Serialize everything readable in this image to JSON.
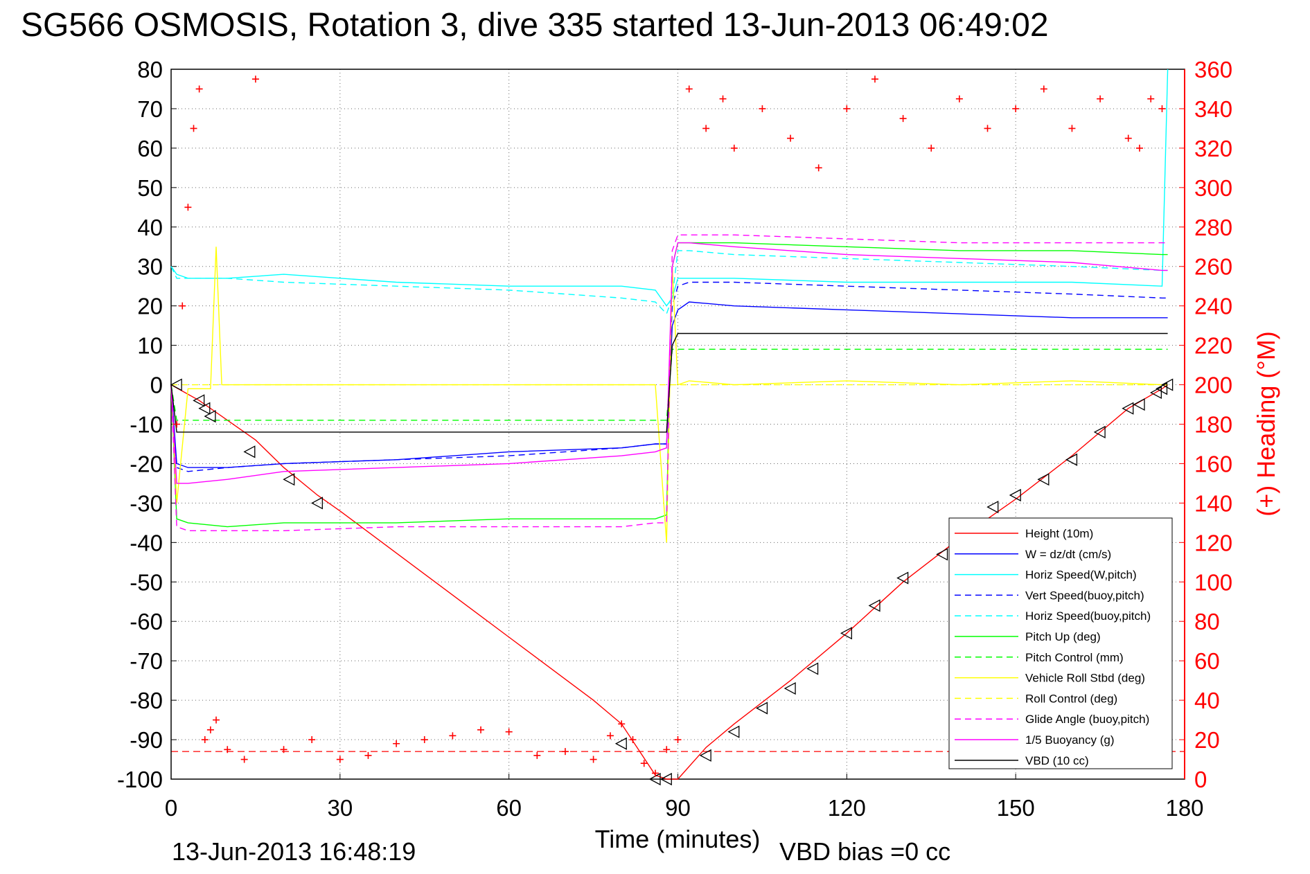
{
  "chart_data": {
    "type": "line",
    "title": "SG566 OSMOSIS, Rotation 3, dive 335 started 13-Jun-2013 06:49:02",
    "xlabel": "Time (minutes)",
    "ylabel_right": "(+) Heading (°M)",
    "xlim": [
      0,
      180
    ],
    "ylim": [
      -100,
      80
    ],
    "ylim_right": [
      0,
      360
    ],
    "x_ticks": [
      "0",
      "30",
      "60",
      "90",
      "120",
      "150",
      "180"
    ],
    "y_ticks": [
      "80",
      "70",
      "60",
      "50",
      "40",
      "30",
      "20",
      "10",
      "0",
      "-10",
      "-20",
      "-30",
      "-40",
      "-50",
      "-60",
      "-70",
      "-80",
      "-90",
      "-100"
    ],
    "y_ticks_right": [
      "360",
      "340",
      "320",
      "300",
      "280",
      "260",
      "240",
      "220",
      "200",
      "180",
      "160",
      "140",
      "120",
      "100",
      "80",
      "60",
      "40",
      "20",
      "0"
    ],
    "grid": true,
    "legend_position": "bottom-right",
    "footer_left": "13-Jun-2013 16:48:19",
    "footer_right": "VBD bias =0 cc",
    "series": [
      {
        "name": "Height (10m)",
        "color": "#ff0000",
        "style": "solid",
        "x": [
          0,
          5,
          10,
          15,
          20,
          26,
          30,
          45,
          60,
          75,
          80,
          86,
          88,
          90,
          95,
          100,
          110,
          120,
          130,
          140,
          150,
          160,
          170,
          176,
          177
        ],
        "y": [
          0,
          -4,
          -9,
          -14,
          -21,
          -28,
          -32,
          -48,
          -64,
          -80,
          -86,
          -99,
          -100,
          -100,
          -92,
          -86,
          -75,
          -63,
          -50,
          -39,
          -29,
          -18,
          -6,
          -1,
          0
        ]
      },
      {
        "name": "W = dz/dt (cm/s)",
        "color": "#0000ff",
        "style": "solid",
        "x": [
          0,
          1,
          3,
          10,
          20,
          40,
          60,
          80,
          86,
          88,
          89,
          90,
          92,
          100,
          120,
          140,
          160,
          176,
          177
        ],
        "y": [
          0,
          -20,
          -21,
          -21,
          -20,
          -19,
          -17,
          -16,
          -15,
          -15,
          15,
          19,
          21,
          20,
          19,
          18,
          17,
          17,
          17
        ]
      },
      {
        "name": "Horiz Speed(W,pitch)",
        "color": "#00ffff",
        "style": "solid",
        "x": [
          0,
          1,
          3,
          10,
          20,
          40,
          60,
          80,
          86,
          88,
          89,
          90,
          92,
          100,
          120,
          140,
          160,
          176,
          177
        ],
        "y": [
          30,
          28,
          27,
          27,
          28,
          26,
          25,
          25,
          24,
          20,
          22,
          27,
          27,
          27,
          26,
          26,
          26,
          25,
          80
        ]
      },
      {
        "name": "Vert Speed(buoy,pitch)",
        "color": "#0000ff",
        "style": "dashed",
        "x": [
          0,
          1,
          3,
          10,
          20,
          40,
          60,
          80,
          86,
          88,
          89,
          90,
          92,
          100,
          120,
          140,
          160,
          176,
          177
        ],
        "y": [
          0,
          -21,
          -22,
          -21,
          -20,
          -19,
          -18,
          -16,
          -15,
          -15,
          20,
          25,
          26,
          26,
          25,
          24,
          23,
          22,
          22
        ]
      },
      {
        "name": "Horiz Speed(buoy,pitch)",
        "color": "#00ffff",
        "style": "dashed",
        "x": [
          0,
          1,
          3,
          10,
          20,
          40,
          60,
          80,
          86,
          88,
          89,
          90,
          92,
          100,
          120,
          140,
          160,
          176,
          177
        ],
        "y": [
          30,
          27,
          27,
          27,
          26,
          25,
          24,
          22,
          21,
          18,
          22,
          34,
          34,
          33,
          32,
          31,
          30,
          29,
          29
        ]
      },
      {
        "name": "Pitch Up (deg)",
        "color": "#00ff00",
        "style": "solid",
        "x": [
          0,
          1,
          3,
          10,
          20,
          40,
          60,
          80,
          86,
          88,
          89,
          90,
          92,
          100,
          120,
          140,
          160,
          176,
          177
        ],
        "y": [
          0,
          -34,
          -35,
          -36,
          -35,
          -35,
          -34,
          -34,
          -34,
          -33,
          30,
          36,
          36,
          36,
          35,
          34,
          34,
          33,
          33
        ]
      },
      {
        "name": "Pitch Control (mm)",
        "color": "#00ff00",
        "style": "dashed",
        "x": [
          0,
          1,
          3,
          10,
          20,
          40,
          60,
          80,
          86,
          88,
          89,
          90,
          92,
          100,
          120,
          140,
          160,
          176,
          177
        ],
        "y": [
          0,
          -9,
          -9,
          -9,
          -9,
          -9,
          -9,
          -9,
          -9,
          -9,
          9,
          9,
          9,
          9,
          9,
          9,
          9,
          9,
          9
        ]
      },
      {
        "name": "Vehicle Roll Stbd (deg)",
        "color": "#ffff00",
        "style": "solid",
        "x": [
          0,
          1,
          3,
          7,
          8,
          9,
          20,
          40,
          60,
          80,
          86,
          88,
          89,
          90,
          92,
          100,
          120,
          140,
          160,
          176,
          177
        ],
        "y": [
          0,
          -30,
          -1,
          -1,
          35,
          0,
          0,
          0,
          0,
          0,
          0,
          -40,
          30,
          0,
          1,
          0,
          1,
          0,
          1,
          0,
          0
        ]
      },
      {
        "name": "Roll Control (deg)",
        "color": "#ffff00",
        "style": "dashed",
        "x": [
          0,
          1,
          3,
          10,
          20,
          40,
          60,
          80,
          86,
          88,
          89,
          90,
          92,
          100,
          120,
          140,
          160,
          176,
          177
        ],
        "y": [
          0,
          0,
          0,
          0,
          0,
          0,
          0,
          0,
          0,
          0,
          0,
          0,
          0,
          0,
          0,
          0,
          0,
          0,
          0
        ]
      },
      {
        "name": "Glide Angle (buoy,pitch)",
        "color": "#ff00ff",
        "style": "dashed",
        "x": [
          0,
          1,
          3,
          10,
          20,
          40,
          60,
          80,
          86,
          88,
          89,
          90,
          92,
          100,
          120,
          140,
          160,
          176,
          177
        ],
        "y": [
          0,
          -36,
          -37,
          -37,
          -37,
          -36,
          -36,
          -36,
          -35,
          -35,
          34,
          38,
          38,
          38,
          37,
          36,
          36,
          36,
          36
        ]
      },
      {
        "name": "1/5 Buoyancy (g)",
        "color": "#ff00ff",
        "style": "solid",
        "x": [
          0,
          1,
          3,
          10,
          20,
          40,
          60,
          80,
          86,
          88,
          89,
          90,
          92,
          100,
          120,
          140,
          160,
          176,
          177
        ],
        "y": [
          0,
          -25,
          -25,
          -24,
          -22,
          -21,
          -20,
          -18,
          -17,
          -16,
          30,
          36,
          36,
          35,
          33,
          32,
          31,
          29,
          29
        ]
      },
      {
        "name": "VBD (10 cc)",
        "color": "#000000",
        "style": "solid",
        "x": [
          0,
          1,
          3,
          10,
          20,
          40,
          60,
          80,
          86,
          88,
          89,
          90,
          92,
          100,
          120,
          140,
          160,
          176,
          177
        ],
        "y": [
          0,
          -12,
          -12,
          -12,
          -12,
          -12,
          -12,
          -12,
          -12,
          -12,
          10,
          13,
          13,
          13,
          13,
          13,
          13,
          13,
          13
        ]
      }
    ],
    "markers": {
      "height_triangles_x": [
        1,
        5,
        6,
        7,
        14,
        21,
        26,
        80,
        86,
        88,
        95,
        100,
        105,
        110,
        114,
        120,
        125,
        130,
        137,
        146,
        150,
        155,
        160,
        165,
        170,
        172,
        175,
        176,
        177
      ],
      "height_triangles_y": [
        0,
        -4,
        -6,
        -8,
        -17,
        -24,
        -30,
        -91,
        -100,
        -100,
        -94,
        -88,
        -82,
        -77,
        -72,
        -63,
        -56,
        -49,
        -43,
        -31,
        -28,
        -24,
        -19,
        -12,
        -6,
        -5,
        -2,
        -1,
        0
      ]
    },
    "heading_series": {
      "name": "(+) Heading (°M)",
      "color": "#ff0000",
      "marker": "+",
      "reference_line_value": 14,
      "x": [
        1,
        2,
        3,
        4,
        5,
        6,
        7,
        8,
        10,
        13,
        15,
        20,
        25,
        30,
        35,
        40,
        45,
        50,
        55,
        60,
        65,
        70,
        75,
        78,
        80,
        82,
        84,
        86,
        88,
        90,
        92,
        95,
        98,
        100,
        105,
        110,
        115,
        120,
        125,
        130,
        135,
        140,
        145,
        150,
        155,
        160,
        165,
        170,
        172,
        174,
        176
      ],
      "y": [
        180,
        240,
        290,
        330,
        350,
        20,
        25,
        30,
        15,
        10,
        355,
        15,
        20,
        10,
        12,
        18,
        20,
        22,
        25,
        24,
        12,
        14,
        10,
        22,
        28,
        20,
        8,
        3,
        15,
        20,
        350,
        330,
        345,
        320,
        340,
        325,
        310,
        340,
        355,
        335,
        320,
        345,
        330,
        340,
        350,
        330,
        345,
        325,
        320,
        345,
        340
      ]
    }
  }
}
